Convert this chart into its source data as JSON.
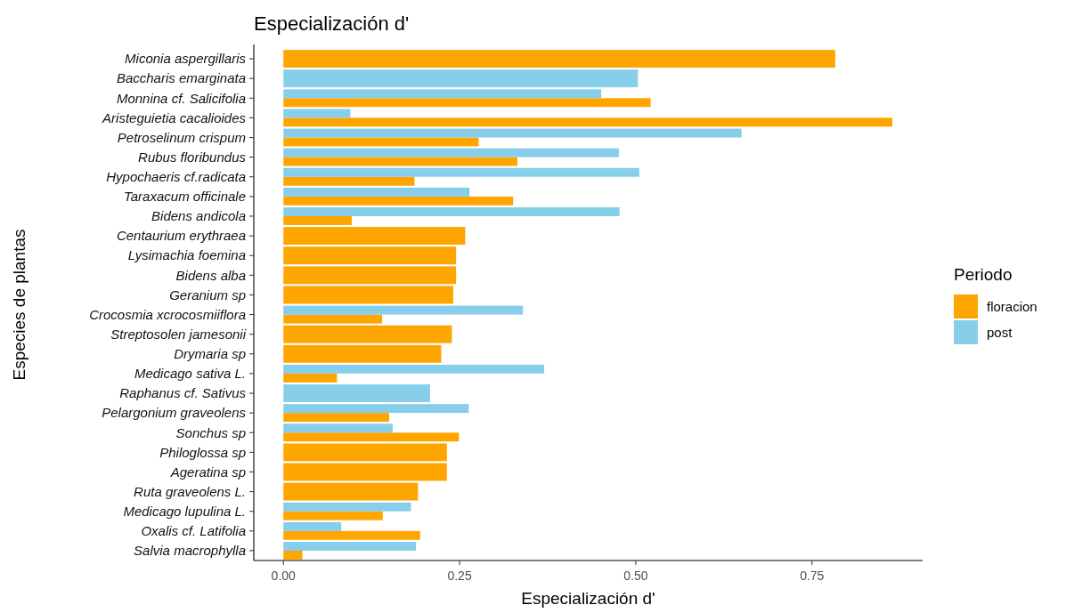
{
  "chart_data": {
    "type": "bar",
    "orientation": "horizontal",
    "title": "Especialización d'",
    "xlabel": "Especialización d'",
    "ylabel": "Especies de plantas",
    "legend_title": "Periodo",
    "legend": "right",
    "grid": false,
    "categories": [
      "Miconia aspergillaris",
      "Baccharis emarginata",
      "Monnina cf. Salicifolia",
      "Aristeguietia cacalioides",
      "Petroselinum crispum",
      "Rubus floribundus",
      "Hypochaeris cf.radicata",
      "Taraxacum officinale",
      "Bidens andicola",
      "Centaurium erythraea",
      "Lysimachia foemina",
      "Bidens alba",
      "Geranium sp",
      "Crocosmia xcrocosmiiflora",
      "Streptosolen jamesonii",
      "Drymaria sp",
      "Medicago sativa L.",
      "Raphanus cf. Sativus",
      "Pelargonium graveolens",
      "Sonchus sp",
      "Philoglossa sp",
      "Ageratina sp",
      "Ruta graveolens L.",
      "Medicago lupulina L.",
      "Oxalis cf. Latifolia",
      "Salvia macrophylla"
    ],
    "series": [
      {
        "name": "floracion",
        "color": "#ffa500",
        "values": [
          0.783,
          null,
          0.521,
          0.864,
          0.277,
          0.332,
          0.186,
          0.326,
          0.097,
          0.258,
          0.245,
          0.245,
          0.241,
          0.14,
          0.239,
          0.224,
          0.076,
          null,
          0.15,
          0.249,
          0.232,
          0.232,
          0.191,
          0.141,
          0.194,
          0.027
        ]
      },
      {
        "name": "post",
        "color": "#87ceeb",
        "values": [
          null,
          0.503,
          0.451,
          0.095,
          0.65,
          0.476,
          0.505,
          0.264,
          0.477,
          null,
          null,
          null,
          null,
          0.34,
          null,
          null,
          0.37,
          0.208,
          0.263,
          0.155,
          null,
          null,
          null,
          0.181,
          0.082,
          0.188
        ]
      }
    ],
    "xlim": [
      -0.042,
      0.907
    ],
    "xticks": [
      {
        "value": 0,
        "label": "0.00"
      },
      {
        "value": 0.25,
        "label": "0.25"
      },
      {
        "value": 0.5,
        "label": "0.50"
      },
      {
        "value": 0.75,
        "label": "0.75"
      }
    ]
  }
}
